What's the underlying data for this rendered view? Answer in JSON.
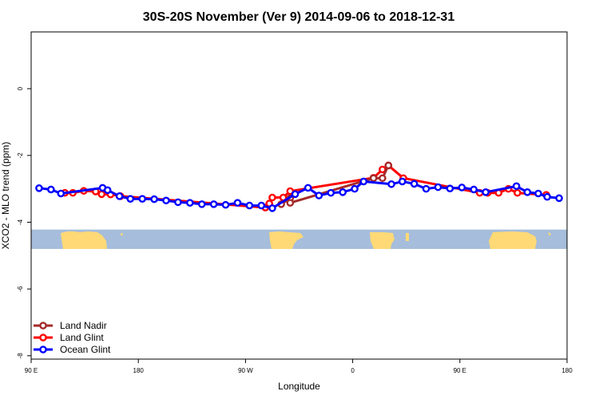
{
  "chart_data": {
    "type": "line",
    "title": "30S-20S November (Ver 9)   2014-09-06 to 2018-12-31",
    "xlabel": "Longitude",
    "ylabel": "XCO2 - MLO trend (ppm)",
    "xlim": [
      -90,
      180
    ],
    "ylim": [
      -8.1,
      1.7
    ],
    "x_ticks": [
      {
        "value": -90,
        "label": "90 E"
      },
      {
        "value": -36,
        "label": "180"
      },
      {
        "value": 18,
        "label": "90 W"
      },
      {
        "value": 72,
        "label": "0"
      },
      {
        "value": 126,
        "label": "90 E"
      },
      {
        "value": 180,
        "label": "180"
      }
    ],
    "y_ticks": [
      {
        "value": 0,
        "label": "0"
      },
      {
        "value": -2,
        "label": "-2"
      },
      {
        "value": -4,
        "label": "-4"
      },
      {
        "value": -6,
        "label": "-6"
      },
      {
        "value": -8,
        "label": "-8"
      }
    ],
    "grid": false,
    "legend_position": "bottom-left",
    "land_band": {
      "y_top": -4.22,
      "y_bottom": -4.8,
      "ocean_color": "#a6bddb",
      "land_color": "#fed976"
    },
    "series": [
      {
        "name": "Land Nadir",
        "color": "#a52a2a",
        "points": [
          [
            36.0,
            -3.46
          ],
          [
            40.5,
            -3.28
          ],
          [
            40.5,
            -3.42
          ],
          [
            82.5,
            -2.68
          ],
          [
            87.0,
            -2.68
          ],
          [
            90.0,
            -2.3
          ]
        ]
      },
      {
        "name": "Land Glint",
        "color": "#ff0000",
        "points": [
          [
            -73.0,
            -3.12
          ],
          [
            -69.0,
            -3.12
          ],
          [
            -63.5,
            -3.06
          ],
          [
            -57.5,
            -3.08
          ],
          [
            -54.5,
            -3.16
          ],
          [
            -50.0,
            -3.17
          ],
          [
            -45.0,
            -3.22
          ],
          [
            28.0,
            -3.56
          ],
          [
            30.0,
            -3.44
          ],
          [
            31.5,
            -3.26
          ],
          [
            37.0,
            -3.26
          ],
          [
            40.5,
            -3.07
          ],
          [
            82.5,
            -2.67
          ],
          [
            87.0,
            -2.42
          ],
          [
            90.0,
            -2.3
          ],
          [
            97.5,
            -2.68
          ],
          [
            136.0,
            -3.12
          ],
          [
            140.0,
            -3.12
          ],
          [
            145.5,
            -3.12
          ],
          [
            150.5,
            -3.0
          ],
          [
            155.0,
            -3.12
          ],
          [
            169.5,
            -3.18
          ]
        ]
      },
      {
        "name": "Ocean Glint",
        "color": "#0000ff",
        "points": [
          [
            -86.0,
            -2.98
          ],
          [
            -80.0,
            -3.02
          ],
          [
            -75.0,
            -3.14
          ],
          [
            -54.0,
            -2.97
          ],
          [
            -51.5,
            -3.04
          ],
          [
            -45.5,
            -3.22
          ],
          [
            -40.0,
            -3.3
          ],
          [
            -34.0,
            -3.3
          ],
          [
            -28.0,
            -3.31
          ],
          [
            -22.0,
            -3.35
          ],
          [
            -16.0,
            -3.4
          ],
          [
            -10.0,
            -3.42
          ],
          [
            -4.0,
            -3.46
          ],
          [
            2.0,
            -3.46
          ],
          [
            8.0,
            -3.48
          ],
          [
            14.0,
            -3.42
          ],
          [
            20.0,
            -3.5
          ],
          [
            26.0,
            -3.5
          ],
          [
            31.5,
            -3.58
          ],
          [
            43.0,
            -3.16
          ],
          [
            49.5,
            -2.97
          ],
          [
            55.0,
            -3.2
          ],
          [
            61.0,
            -3.12
          ],
          [
            67.0,
            -3.1
          ],
          [
            73.0,
            -3.0
          ],
          [
            77.5,
            -2.78
          ],
          [
            91.5,
            -2.86
          ],
          [
            97.0,
            -2.78
          ],
          [
            103.0,
            -2.85
          ],
          [
            109.0,
            -3.0
          ],
          [
            115.0,
            -2.95
          ],
          [
            121.0,
            -2.99
          ],
          [
            127.0,
            -2.96
          ],
          [
            133.0,
            -3.02
          ],
          [
            139.0,
            -3.1
          ],
          [
            154.5,
            -2.92
          ],
          [
            160.0,
            -3.1
          ],
          [
            165.5,
            -3.14
          ],
          [
            170.0,
            -3.24
          ],
          [
            176.0,
            -3.28
          ]
        ]
      }
    ]
  }
}
